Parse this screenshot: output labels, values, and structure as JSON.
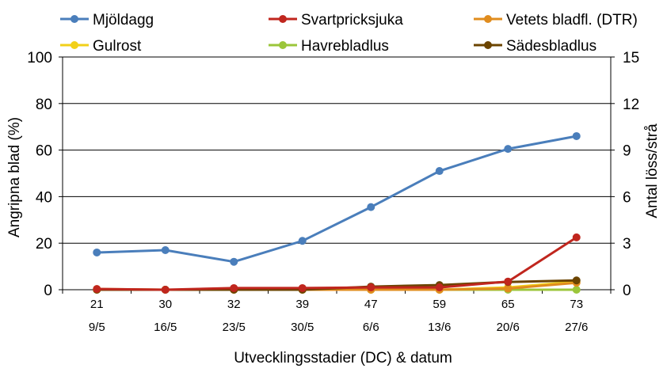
{
  "chart_data": {
    "type": "line",
    "title": "",
    "xlabel": "Utvecklingsstadier (DC) & datum",
    "ylabel": "Angripna blad (%)",
    "y2label": "Antal löss/strå",
    "ylim": [
      0,
      100
    ],
    "y2lim": [
      0,
      15
    ],
    "yticks": [
      "0",
      "20",
      "40",
      "60",
      "80",
      "100"
    ],
    "y2ticks": [
      "0",
      "3",
      "6",
      "9",
      "12",
      "15"
    ],
    "categories_dc": [
      "21",
      "30",
      "32",
      "39",
      "47",
      "59",
      "65",
      "73"
    ],
    "categories_date": [
      "9/5",
      "16/5",
      "23/5",
      "30/5",
      "6/6",
      "13/6",
      "20/6",
      "27/6"
    ],
    "grid": true,
    "legend_position": "top",
    "series": [
      {
        "name": "Mjöldagg",
        "axis": "left",
        "color": "#4a7ebb",
        "values": [
          16,
          17,
          12,
          21,
          35.5,
          51,
          60.5,
          66
        ]
      },
      {
        "name": "Svartpricksjuka",
        "axis": "left",
        "color": "#c0261e",
        "values": [
          0.3,
          0,
          0.7,
          0.7,
          1,
          1,
          3.5,
          22.5
        ]
      },
      {
        "name": "Vetets bladfl. (DTR)",
        "axis": "left",
        "color": "#e08c1e",
        "values": [
          0.3,
          0,
          0,
          0,
          0,
          0,
          0.5,
          3
        ]
      },
      {
        "name": "Gulrost",
        "axis": "left",
        "color": "#f2d019",
        "values": [
          0,
          0,
          0,
          0,
          0,
          0,
          1,
          3.5
        ]
      },
      {
        "name": "Havrebladlus",
        "axis": "right",
        "color": "#9bc63a",
        "values": [
          0,
          0,
          0,
          0,
          0,
          0,
          0,
          0
        ]
      },
      {
        "name": "Sädesbladlus",
        "axis": "right",
        "color": "#6b4400",
        "values": [
          0,
          0,
          0,
          0,
          0.2,
          0.3,
          0.5,
          0.6
        ]
      }
    ]
  }
}
